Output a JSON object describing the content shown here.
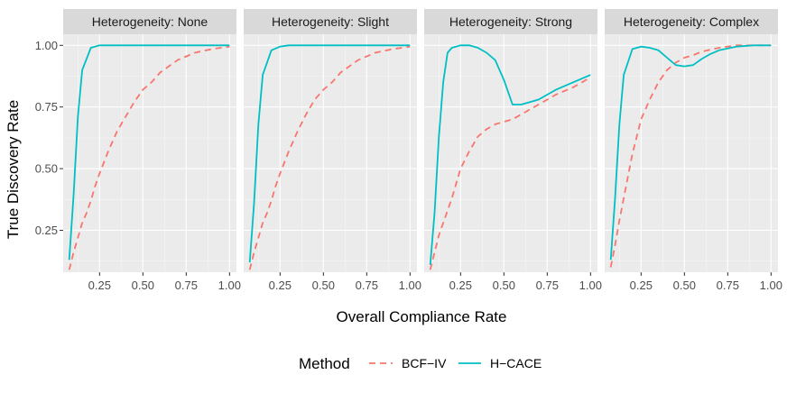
{
  "chart_data": {
    "type": "line",
    "xlabel": "Overall Compliance Rate",
    "ylabel": "True Discovery Rate",
    "xlim": [
      0.04,
      1.04
    ],
    "ylim": [
      0.08,
      1.045
    ],
    "x_ticks": [
      0.25,
      0.5,
      0.75,
      1.0
    ],
    "x_tick_labels": [
      "0.25",
      "0.50",
      "0.75",
      "1.00"
    ],
    "y_ticks": [
      0.25,
      0.5,
      0.75,
      1.0
    ],
    "y_tick_labels": [
      "0.25",
      "0.50",
      "0.75",
      "1.00"
    ],
    "grid": true,
    "legend": {
      "title": "Method",
      "position": "bottom",
      "entries": [
        {
          "name": "BCF−IV",
          "color": "#F8766D",
          "dash": "dashed"
        },
        {
          "name": "H−CACE",
          "color": "#00BFC4",
          "dash": "solid"
        }
      ]
    },
    "panels": [
      {
        "title": "Heterogeneity: None",
        "series": [
          {
            "name": "BCF−IV",
            "x": [
              0.075,
              0.1,
              0.125,
              0.15,
              0.175,
              0.2,
              0.225,
              0.25,
              0.3,
              0.35,
              0.4,
              0.45,
              0.5,
              0.55,
              0.6,
              0.7,
              0.8,
              0.9,
              1.0
            ],
            "y": [
              0.09,
              0.16,
              0.22,
              0.28,
              0.32,
              0.37,
              0.43,
              0.48,
              0.57,
              0.65,
              0.71,
              0.77,
              0.82,
              0.85,
              0.89,
              0.94,
              0.97,
              0.985,
              0.995
            ]
          },
          {
            "name": "H−CACE",
            "x": [
              0.075,
              0.1,
              0.125,
              0.15,
              0.2,
              0.25,
              0.3,
              0.35,
              0.4,
              0.5,
              0.6,
              0.7,
              0.8,
              0.9,
              1.0
            ],
            "y": [
              0.13,
              0.39,
              0.71,
              0.9,
              0.99,
              1.0,
              1.0,
              1.0,
              1.0,
              1.0,
              1.0,
              1.0,
              1.0,
              1.0,
              1.0
            ]
          }
        ]
      },
      {
        "title": "Heterogeneity: Slight",
        "series": [
          {
            "name": "BCF−IV",
            "x": [
              0.075,
              0.1,
              0.125,
              0.15,
              0.175,
              0.2,
              0.225,
              0.25,
              0.3,
              0.35,
              0.4,
              0.45,
              0.5,
              0.55,
              0.6,
              0.7,
              0.8,
              0.9,
              1.0
            ],
            "y": [
              0.09,
              0.16,
              0.22,
              0.28,
              0.32,
              0.37,
              0.43,
              0.48,
              0.57,
              0.65,
              0.72,
              0.78,
              0.82,
              0.85,
              0.89,
              0.94,
              0.97,
              0.985,
              0.995
            ]
          },
          {
            "name": "H−CACE",
            "x": [
              0.075,
              0.1,
              0.125,
              0.15,
              0.2,
              0.25,
              0.3,
              0.35,
              0.4,
              0.5,
              0.6,
              0.7,
              0.8,
              0.9,
              1.0
            ],
            "y": [
              0.12,
              0.36,
              0.68,
              0.88,
              0.98,
              0.995,
              1.0,
              1.0,
              1.0,
              1.0,
              1.0,
              1.0,
              1.0,
              1.0,
              1.0
            ]
          }
        ]
      },
      {
        "title": "Heterogeneity: Strong",
        "series": [
          {
            "name": "BCF−IV",
            "x": [
              0.075,
              0.1,
              0.125,
              0.15,
              0.175,
              0.2,
              0.225,
              0.25,
              0.3,
              0.35,
              0.4,
              0.45,
              0.5,
              0.55,
              0.6,
              0.7,
              0.8,
              0.9,
              1.0
            ],
            "y": [
              0.09,
              0.16,
              0.23,
              0.28,
              0.33,
              0.38,
              0.44,
              0.5,
              0.57,
              0.63,
              0.66,
              0.68,
              0.69,
              0.7,
              0.72,
              0.76,
              0.8,
              0.83,
              0.87
            ]
          },
          {
            "name": "H−CACE",
            "x": [
              0.075,
              0.1,
              0.125,
              0.15,
              0.175,
              0.2,
              0.25,
              0.3,
              0.35,
              0.4,
              0.45,
              0.5,
              0.55,
              0.6,
              0.65,
              0.7,
              0.8,
              0.9,
              1.0
            ],
            "y": [
              0.11,
              0.32,
              0.63,
              0.85,
              0.97,
              0.99,
              1.0,
              1.0,
              0.99,
              0.97,
              0.94,
              0.86,
              0.76,
              0.76,
              0.77,
              0.78,
              0.82,
              0.85,
              0.88
            ]
          }
        ]
      },
      {
        "title": "Heterogeneity: Complex",
        "series": [
          {
            "name": "BCF−IV",
            "x": [
              0.075,
              0.1,
              0.125,
              0.15,
              0.175,
              0.2,
              0.25,
              0.3,
              0.35,
              0.4,
              0.45,
              0.5,
              0.55,
              0.6,
              0.7,
              0.8,
              0.9,
              1.0
            ],
            "y": [
              0.1,
              0.19,
              0.29,
              0.38,
              0.47,
              0.56,
              0.7,
              0.78,
              0.85,
              0.9,
              0.93,
              0.95,
              0.96,
              0.975,
              0.99,
              1.0,
              1.0,
              1.0
            ]
          },
          {
            "name": "H−CACE",
            "x": [
              0.075,
              0.1,
              0.125,
              0.15,
              0.2,
              0.25,
              0.3,
              0.35,
              0.4,
              0.45,
              0.5,
              0.55,
              0.6,
              0.65,
              0.7,
              0.8,
              0.9,
              1.0
            ],
            "y": [
              0.13,
              0.38,
              0.68,
              0.88,
              0.985,
              0.995,
              0.99,
              0.98,
              0.95,
              0.92,
              0.915,
              0.92,
              0.945,
              0.965,
              0.98,
              0.995,
              1.0,
              1.0
            ]
          }
        ]
      }
    ]
  }
}
